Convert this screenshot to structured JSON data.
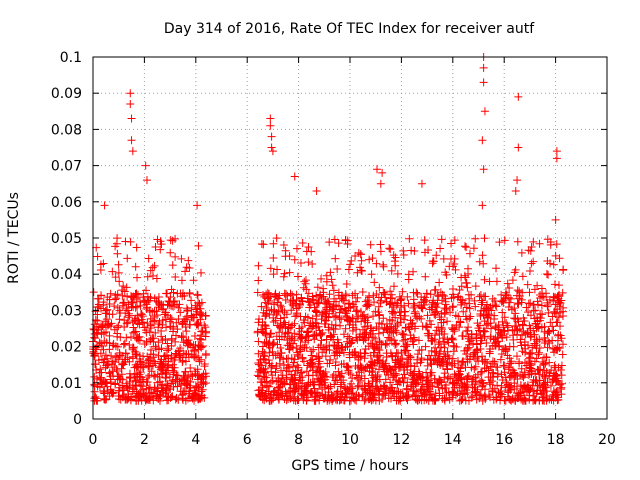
{
  "chart_data": {
    "type": "scatter",
    "title": "Day 314 of 2016, Rate Of TEC Index for receiver autf",
    "xlabel": "GPS time / hours",
    "ylabel": "ROTI / TECUs",
    "xlim": [
      0,
      20
    ],
    "ylim": [
      0,
      0.1
    ],
    "xticks": [
      "0",
      "2",
      "4",
      "6",
      "8",
      "10",
      "12",
      "14",
      "16",
      "18",
      "20"
    ],
    "yticks": [
      "0",
      "0.01",
      "0.02",
      "0.03",
      "0.04",
      "0.05",
      "0.06",
      "0.07",
      "0.08",
      "0.09",
      "0.1"
    ],
    "grid": true,
    "marker": "+",
    "color": "#ff0000",
    "data_segments_hours": [
      [
        0.0,
        4.4
      ],
      [
        6.4,
        18.3
      ]
    ],
    "notable_points": [
      {
        "x": 0.45,
        "y": 0.059
      },
      {
        "x": 1.45,
        "y": 0.09
      },
      {
        "x": 1.45,
        "y": 0.087
      },
      {
        "x": 1.5,
        "y": 0.083
      },
      {
        "x": 1.5,
        "y": 0.077
      },
      {
        "x": 1.55,
        "y": 0.074
      },
      {
        "x": 2.05,
        "y": 0.07
      },
      {
        "x": 2.1,
        "y": 0.066
      },
      {
        "x": 4.05,
        "y": 0.059
      },
      {
        "x": 6.9,
        "y": 0.083
      },
      {
        "x": 6.9,
        "y": 0.081
      },
      {
        "x": 6.95,
        "y": 0.078
      },
      {
        "x": 6.95,
        "y": 0.075
      },
      {
        "x": 7.0,
        "y": 0.074
      },
      {
        "x": 7.85,
        "y": 0.067
      },
      {
        "x": 8.7,
        "y": 0.063
      },
      {
        "x": 11.05,
        "y": 0.069
      },
      {
        "x": 11.25,
        "y": 0.068
      },
      {
        "x": 11.2,
        "y": 0.065
      },
      {
        "x": 12.8,
        "y": 0.065
      },
      {
        "x": 15.2,
        "y": 0.1
      },
      {
        "x": 15.2,
        "y": 0.097
      },
      {
        "x": 15.2,
        "y": 0.093
      },
      {
        "x": 15.25,
        "y": 0.085
      },
      {
        "x": 15.15,
        "y": 0.077
      },
      {
        "x": 15.2,
        "y": 0.069
      },
      {
        "x": 15.15,
        "y": 0.059
      },
      {
        "x": 16.55,
        "y": 0.089
      },
      {
        "x": 16.55,
        "y": 0.075
      },
      {
        "x": 16.5,
        "y": 0.066
      },
      {
        "x": 16.45,
        "y": 0.063
      },
      {
        "x": 18.05,
        "y": 0.074
      },
      {
        "x": 18.05,
        "y": 0.072
      },
      {
        "x": 18.0,
        "y": 0.055
      }
    ],
    "bulk_distribution": {
      "y_core_range": [
        0.005,
        0.035
      ],
      "y_typical_upper": 0.05
    }
  }
}
